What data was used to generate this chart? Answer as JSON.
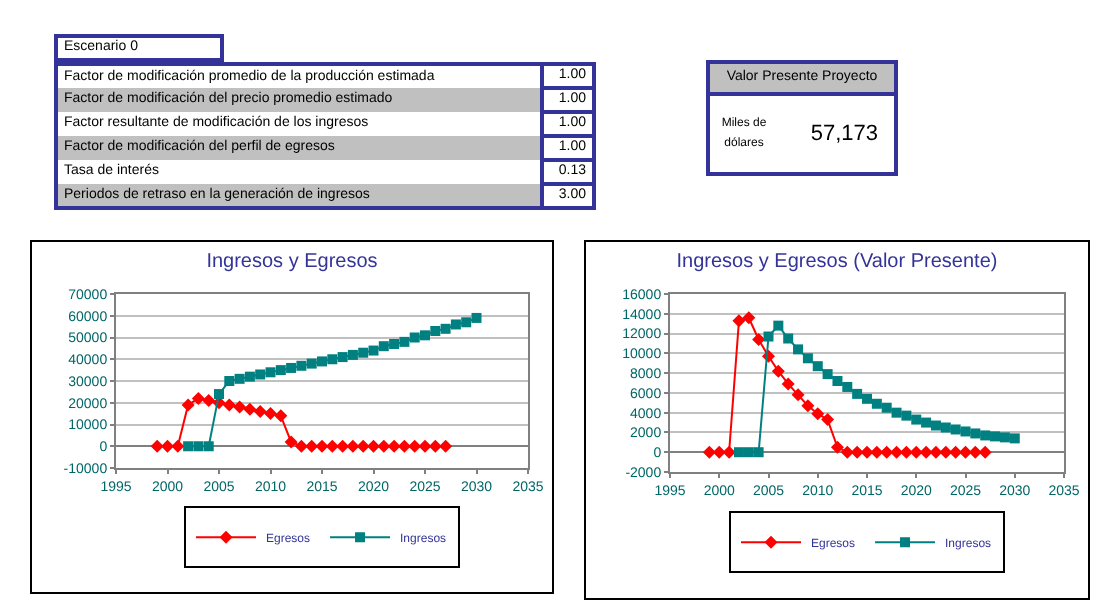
{
  "chart_data": [
    {
      "type": "other",
      "title": "Escenario 0",
      "categories": [
        "Factor de modificación promedio de la producción estimada",
        "Factor de modificación del precio promedio estimado",
        "Factor resultante de modificación de los ingresos",
        "Factor de modificación del perfil de egresos",
        "Tasa de interés",
        "Periodos de retraso en la generación de ingresos"
      ],
      "value_labels": [
        "1.00",
        "1.00",
        "1.00",
        "1.00",
        "0.13",
        "3.00"
      ]
    },
    {
      "type": "other",
      "title": "Valor Presente Proyecto",
      "annotations": [
        "Miles de dólares"
      ],
      "value_labels": [
        "57,173"
      ]
    },
    {
      "type": "line",
      "title": "Ingresos y Egresos",
      "xlim": [
        1995,
        2035
      ],
      "xticks": [
        1995,
        2000,
        2005,
        2010,
        2015,
        2020,
        2025,
        2030,
        2035
      ],
      "ylim": [
        -10000,
        70000
      ],
      "yticks": [
        -10000,
        0,
        10000,
        20000,
        30000,
        40000,
        50000,
        60000,
        70000
      ],
      "grid": "y",
      "legend": "bottom",
      "series": [
        {
          "name": "Egresos",
          "color": "#ff0000",
          "marker": "diamond",
          "x": [
            1999,
            2000,
            2001,
            2002,
            2003,
            2004,
            2005,
            2006,
            2007,
            2008,
            2009,
            2010,
            2011,
            2012,
            2013,
            2014,
            2015,
            2016,
            2017,
            2018,
            2019,
            2020,
            2021,
            2022,
            2023,
            2024,
            2025,
            2026,
            2027
          ],
          "values": [
            0,
            0,
            0,
            19000,
            22000,
            21000,
            20000,
            19000,
            18000,
            17000,
            16000,
            15000,
            14000,
            2000,
            0,
            0,
            0,
            0,
            0,
            0,
            0,
            0,
            0,
            0,
            0,
            0,
            0,
            0,
            0
          ]
        },
        {
          "name": "Ingresos",
          "color": "#008080",
          "marker": "square",
          "x": [
            2002,
            2003,
            2004,
            2005,
            2006,
            2007,
            2008,
            2009,
            2010,
            2011,
            2012,
            2013,
            2014,
            2015,
            2016,
            2017,
            2018,
            2019,
            2020,
            2021,
            2022,
            2023,
            2024,
            2025,
            2026,
            2027,
            2028,
            2029,
            2030
          ],
          "values": [
            0,
            0,
            0,
            24000,
            30000,
            31000,
            32000,
            33000,
            34000,
            35000,
            36000,
            37000,
            38000,
            39000,
            40000,
            41000,
            42000,
            43000,
            44000,
            46000,
            47000,
            48000,
            50000,
            51000,
            53000,
            54000,
            56000,
            57000,
            59000
          ]
        }
      ]
    },
    {
      "type": "line",
      "title": "Ingresos y Egresos (Valor Presente)",
      "xlim": [
        1995,
        2035
      ],
      "xticks": [
        1995,
        2000,
        2005,
        2010,
        2015,
        2020,
        2025,
        2030,
        2035
      ],
      "ylim": [
        -2000,
        16000
      ],
      "yticks": [
        -2000,
        0,
        2000,
        4000,
        6000,
        8000,
        10000,
        12000,
        14000,
        16000
      ],
      "grid": "y",
      "legend": "bottom",
      "series": [
        {
          "name": "Egresos",
          "color": "#ff0000",
          "marker": "diamond",
          "x": [
            1999,
            2000,
            2001,
            2002,
            2003,
            2004,
            2005,
            2006,
            2007,
            2008,
            2009,
            2010,
            2011,
            2012,
            2013,
            2014,
            2015,
            2016,
            2017,
            2018,
            2019,
            2020,
            2021,
            2022,
            2023,
            2024,
            2025,
            2026,
            2027
          ],
          "values": [
            0,
            0,
            0,
            13300,
            13600,
            11400,
            9700,
            8200,
            6900,
            5800,
            4700,
            3900,
            3300,
            500,
            0,
            0,
            0,
            0,
            0,
            0,
            0,
            0,
            0,
            0,
            0,
            0,
            0,
            0,
            0
          ]
        },
        {
          "name": "Ingresos",
          "color": "#008080",
          "marker": "square",
          "x": [
            2002,
            2003,
            2004,
            2005,
            2006,
            2007,
            2008,
            2009,
            2010,
            2011,
            2012,
            2013,
            2014,
            2015,
            2016,
            2017,
            2018,
            2019,
            2020,
            2021,
            2022,
            2023,
            2024,
            2025,
            2026,
            2027,
            2028,
            2029,
            2030
          ],
          "values": [
            0,
            0,
            0,
            11700,
            12800,
            11500,
            10400,
            9500,
            8700,
            7900,
            7200,
            6600,
            5900,
            5400,
            4900,
            4500,
            4000,
            3700,
            3300,
            3000,
            2700,
            2500,
            2300,
            2100,
            1900,
            1700,
            1600,
            1500,
            1400
          ]
        }
      ]
    }
  ]
}
